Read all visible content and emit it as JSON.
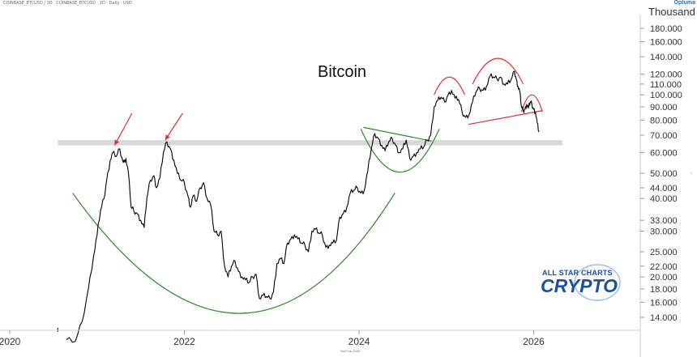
{
  "header": {
    "symbol_line": "COINBASE_BTCUSD / 1D · COINBASE_BTCUSD · 1D · Daily · USD",
    "brand": "Optuma",
    "date_stamp": "Sat Feb 2026"
  },
  "watermark": {
    "line1": "ALL STAR CHARTS",
    "line2": "CRYPTO"
  },
  "chart_data": {
    "type": "line",
    "title": "Bitcoin",
    "y_unit": "Thousand",
    "y_scale": "log",
    "ylim": [
      12,
      220
    ],
    "xlim": [
      2020.55,
      2026.4
    ],
    "y_ticks": [
      {
        "v": 180,
        "label": "180.000"
      },
      {
        "v": 160,
        "label": "160.000"
      },
      {
        "v": 140,
        "label": "140.000"
      },
      {
        "v": 120,
        "label": "120.000"
      },
      {
        "v": 110,
        "label": "110.000"
      },
      {
        "v": 100,
        "label": "100.000"
      },
      {
        "v": 90,
        "label": "90.000"
      },
      {
        "v": 80,
        "label": "80.000"
      },
      {
        "v": 70,
        "label": "70.000"
      },
      {
        "v": 60,
        "label": "60.000"
      },
      {
        "v": 50,
        "label": "50.000"
      },
      {
        "v": 44,
        "label": "44.000"
      },
      {
        "v": 40,
        "label": "40.000"
      },
      {
        "v": 33,
        "label": "33.000"
      },
      {
        "v": 30,
        "label": "30.000"
      },
      {
        "v": 25,
        "label": "25.000"
      },
      {
        "v": 22,
        "label": "22.000"
      },
      {
        "v": 20,
        "label": "20.000"
      },
      {
        "v": 18,
        "label": "18.000"
      },
      {
        "v": 16,
        "label": "16.000"
      },
      {
        "v": 14,
        "label": "14.000"
      }
    ],
    "x_ticks": [
      {
        "v": 2020,
        "label": "2020"
      },
      {
        "v": 2022,
        "label": "2022"
      },
      {
        "v": 2024,
        "label": "2024"
      },
      {
        "v": 2026,
        "label": "2026"
      }
    ],
    "series": [
      {
        "color": "#000000",
        "points": [
          [
            2020.65,
            11.5
          ],
          [
            2020.75,
            11.3
          ],
          [
            2020.83,
            13.5
          ],
          [
            2020.9,
            18
          ],
          [
            2020.96,
            24
          ],
          [
            2021.0,
            29
          ],
          [
            2021.04,
            36
          ],
          [
            2021.08,
            40
          ],
          [
            2021.11,
            47
          ],
          [
            2021.15,
            56
          ],
          [
            2021.18,
            60
          ],
          [
            2021.22,
            58
          ],
          [
            2021.26,
            62
          ],
          [
            2021.3,
            55
          ],
          [
            2021.33,
            57
          ],
          [
            2021.36,
            50
          ],
          [
            2021.39,
            37
          ],
          [
            2021.42,
            36
          ],
          [
            2021.46,
            35
          ],
          [
            2021.5,
            33
          ],
          [
            2021.54,
            31
          ],
          [
            2021.57,
            40
          ],
          [
            2021.61,
            47
          ],
          [
            2021.65,
            49
          ],
          [
            2021.68,
            44
          ],
          [
            2021.72,
            48
          ],
          [
            2021.76,
            60
          ],
          [
            2021.8,
            66
          ],
          [
            2021.84,
            62
          ],
          [
            2021.88,
            56
          ],
          [
            2021.92,
            50
          ],
          [
            2021.96,
            47
          ],
          [
            2022.0,
            46
          ],
          [
            2022.04,
            41
          ],
          [
            2022.07,
            37
          ],
          [
            2022.1,
            41
          ],
          [
            2022.14,
            39
          ],
          [
            2022.18,
            44
          ],
          [
            2022.22,
            46
          ],
          [
            2022.26,
            40
          ],
          [
            2022.3,
            38
          ],
          [
            2022.34,
            30
          ],
          [
            2022.38,
            29
          ],
          [
            2022.42,
            30
          ],
          [
            2022.46,
            22
          ],
          [
            2022.5,
            20
          ],
          [
            2022.54,
            22
          ],
          [
            2022.58,
            23
          ],
          [
            2022.62,
            21
          ],
          [
            2022.66,
            20
          ],
          [
            2022.7,
            19.5
          ],
          [
            2022.74,
            19
          ],
          [
            2022.78,
            20
          ],
          [
            2022.82,
            20.5
          ],
          [
            2022.86,
            16.5
          ],
          [
            2022.9,
            17
          ],
          [
            2022.94,
            16.8
          ],
          [
            2022.98,
            16.5
          ],
          [
            2023.02,
            17.5
          ],
          [
            2023.06,
            22.5
          ],
          [
            2023.1,
            23.5
          ],
          [
            2023.14,
            22.5
          ],
          [
            2023.18,
            27
          ],
          [
            2023.22,
            28
          ],
          [
            2023.26,
            29
          ],
          [
            2023.3,
            28
          ],
          [
            2023.34,
            27
          ],
          [
            2023.38,
            26.5
          ],
          [
            2023.42,
            25
          ],
          [
            2023.46,
            30
          ],
          [
            2023.5,
            30.5
          ],
          [
            2023.54,
            29.5
          ],
          [
            2023.58,
            29
          ],
          [
            2023.62,
            26
          ],
          [
            2023.66,
            26.5
          ],
          [
            2023.7,
            27
          ],
          [
            2023.74,
            27.5
          ],
          [
            2023.78,
            34
          ],
          [
            2023.82,
            35
          ],
          [
            2023.86,
            37
          ],
          [
            2023.9,
            42
          ],
          [
            2023.94,
            43
          ],
          [
            2023.98,
            44
          ],
          [
            2024.02,
            42
          ],
          [
            2024.06,
            43
          ],
          [
            2024.1,
            51
          ],
          [
            2024.14,
            62
          ],
          [
            2024.18,
            71
          ],
          [
            2024.22,
            68
          ],
          [
            2024.26,
            64
          ],
          [
            2024.3,
            61
          ],
          [
            2024.34,
            66
          ],
          [
            2024.38,
            68
          ],
          [
            2024.42,
            64
          ],
          [
            2024.46,
            60
          ],
          [
            2024.5,
            62
          ],
          [
            2024.54,
            67
          ],
          [
            2024.58,
            57
          ],
          [
            2024.62,
            58
          ],
          [
            2024.66,
            60
          ],
          [
            2024.7,
            62
          ],
          [
            2024.74,
            63
          ],
          [
            2024.78,
            67
          ],
          [
            2024.82,
            70
          ],
          [
            2024.86,
            90
          ],
          [
            2024.9,
            95
          ],
          [
            2024.94,
            98
          ],
          [
            2024.98,
            94
          ],
          [
            2025.02,
            100
          ],
          [
            2025.06,
            104
          ],
          [
            2025.1,
            97
          ],
          [
            2025.14,
            96
          ],
          [
            2025.18,
            86
          ],
          [
            2025.22,
            82
          ],
          [
            2025.26,
            84
          ],
          [
            2025.3,
            94
          ],
          [
            2025.34,
            103
          ],
          [
            2025.38,
            106
          ],
          [
            2025.42,
            104
          ],
          [
            2025.46,
            108
          ],
          [
            2025.5,
            118
          ],
          [
            2025.54,
            117
          ],
          [
            2025.58,
            115
          ],
          [
            2025.62,
            117
          ],
          [
            2025.66,
            110
          ],
          [
            2025.7,
            110
          ],
          [
            2025.74,
            114
          ],
          [
            2025.78,
            123
          ],
          [
            2025.8,
            115
          ],
          [
            2025.82,
            108
          ],
          [
            2025.84,
            103
          ],
          [
            2025.86,
            90
          ],
          [
            2025.88,
            87
          ],
          [
            2025.9,
            88
          ],
          [
            2025.92,
            92
          ],
          [
            2025.94,
            89
          ],
          [
            2025.96,
            94
          ],
          [
            2025.98,
            92
          ],
          [
            2026.0,
            88
          ],
          [
            2026.02,
            86
          ],
          [
            2026.04,
            78
          ],
          [
            2026.06,
            72
          ]
        ]
      }
    ],
    "annotations": {
      "support_band": {
        "y_low": 64,
        "y_high": 67,
        "x_start": 2020.55,
        "x_end": 2026.33,
        "color": "#d9d9d9"
      },
      "arrows": [
        {
          "from": [
            2021.4,
            85
          ],
          "to": [
            2021.2,
            64
          ],
          "color": "#e03030"
        },
        {
          "from": [
            2021.98,
            85
          ],
          "to": [
            2021.78,
            67
          ],
          "color": "#e03030"
        }
      ],
      "cup_large": {
        "x_start": 2020.72,
        "x_end": 2024.41,
        "x_mid": 2022.69,
        "y_edge": 42,
        "y_bottom": 14.5,
        "color": "#2a8a2a"
      },
      "cup_small": {
        "x_start": 2024.02,
        "x_end": 2024.92,
        "x_mid": 2024.47,
        "y_edge": 74,
        "y_bottom": 50.5,
        "color": "#2a8a2a"
      },
      "consolidation_line": {
        "from": [
          2024.05,
          75
        ],
        "to": [
          2024.83,
          66.5
        ],
        "color": "#2a8a2a"
      },
      "head_shoulders": [
        {
          "x_start": 2024.86,
          "x_end": 2025.21,
          "y_edge": 100,
          "y_top": 117,
          "color": "#e03030"
        },
        {
          "x_start": 2025.3,
          "x_end": 2025.88,
          "y_edge": 110,
          "y_top": 138,
          "color": "#e03030"
        },
        {
          "x_start": 2025.86,
          "x_end": 2026.1,
          "y_edge": 86,
          "y_top": 100,
          "color": "#e03030"
        }
      ],
      "neckline": {
        "from": [
          2025.25,
          77
        ],
        "to": [
          2026.1,
          87
        ],
        "color": "#e03030"
      }
    }
  }
}
